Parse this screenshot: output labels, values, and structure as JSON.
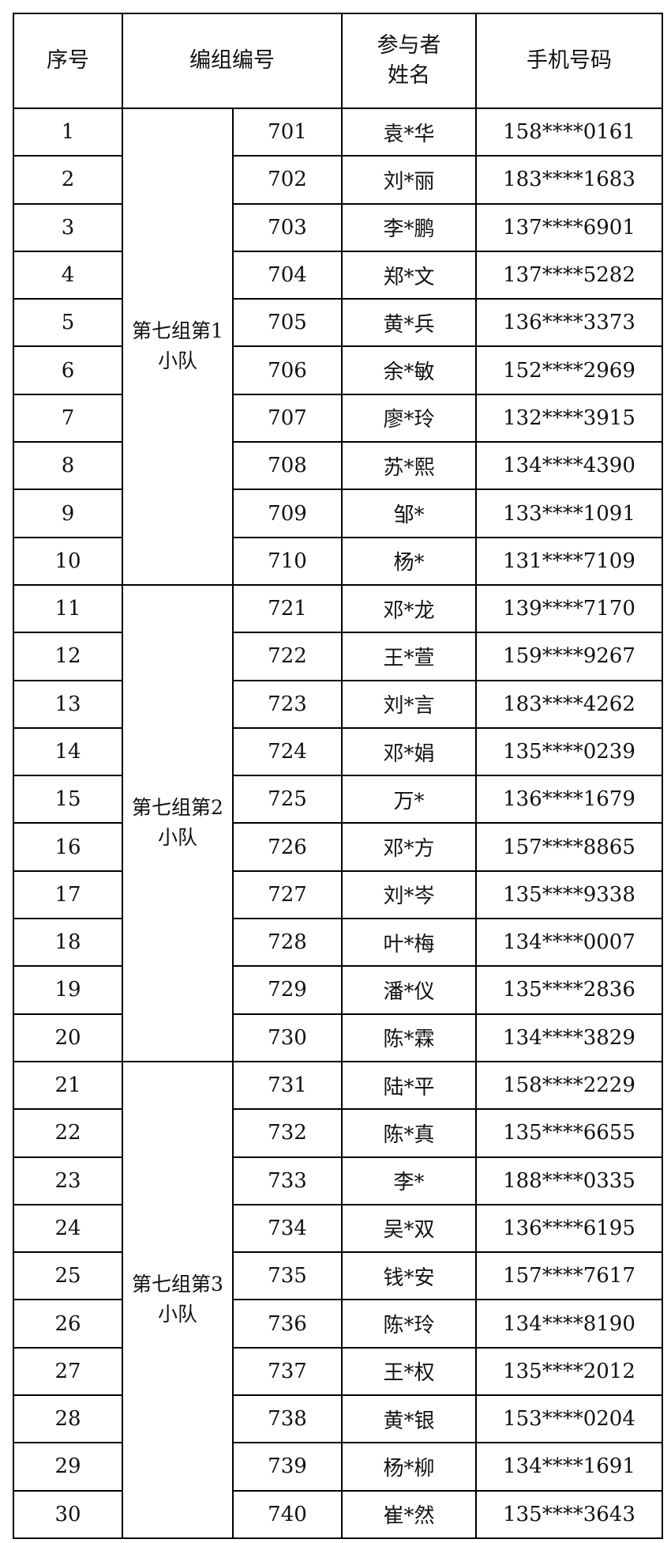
{
  "headers": {
    "index": "序号",
    "group_code": "编组编号",
    "name": "参与者\n姓名",
    "phone": "手机号码"
  },
  "teams": [
    {
      "label": "第七组第1小队",
      "rows": [
        {
          "index": "1",
          "code": "701",
          "name": "袁*华",
          "phone": "158****0161"
        },
        {
          "index": "2",
          "code": "702",
          "name": "刘*丽",
          "phone": "183****1683"
        },
        {
          "index": "3",
          "code": "703",
          "name": "李*鹏",
          "phone": "137****6901"
        },
        {
          "index": "4",
          "code": "704",
          "name": "郑*文",
          "phone": "137****5282"
        },
        {
          "index": "5",
          "code": "705",
          "name": "黄*兵",
          "phone": "136****3373"
        },
        {
          "index": "6",
          "code": "706",
          "name": "余*敏",
          "phone": "152****2969"
        },
        {
          "index": "7",
          "code": "707",
          "name": "廖*玲",
          "phone": "132****3915"
        },
        {
          "index": "8",
          "code": "708",
          "name": "苏*熙",
          "phone": "134****4390"
        },
        {
          "index": "9",
          "code": "709",
          "name": "邹*",
          "phone": "133****1091"
        },
        {
          "index": "10",
          "code": "710",
          "name": "杨*",
          "phone": "131****7109"
        }
      ]
    },
    {
      "label": "第七组第2小队",
      "rows": [
        {
          "index": "11",
          "code": "721",
          "name": "邓*龙",
          "phone": "139****7170"
        },
        {
          "index": "12",
          "code": "722",
          "name": "王*萱",
          "phone": "159****9267"
        },
        {
          "index": "13",
          "code": "723",
          "name": "刘*言",
          "phone": "183****4262"
        },
        {
          "index": "14",
          "code": "724",
          "name": "邓*娟",
          "phone": "135****0239"
        },
        {
          "index": "15",
          "code": "725",
          "name": "万*",
          "phone": "136****1679"
        },
        {
          "index": "16",
          "code": "726",
          "name": "邓*方",
          "phone": "157****8865"
        },
        {
          "index": "17",
          "code": "727",
          "name": "刘*岑",
          "phone": "135****9338"
        },
        {
          "index": "18",
          "code": "728",
          "name": "叶*梅",
          "phone": "134****0007"
        },
        {
          "index": "19",
          "code": "729",
          "name": "潘*仪",
          "phone": "135****2836"
        },
        {
          "index": "20",
          "code": "730",
          "name": "陈*霖",
          "phone": "134****3829"
        }
      ]
    },
    {
      "label": "第七组第3小队",
      "rows": [
        {
          "index": "21",
          "code": "731",
          "name": "陆*平",
          "phone": "158****2229"
        },
        {
          "index": "22",
          "code": "732",
          "name": "陈*真",
          "phone": "135****6655"
        },
        {
          "index": "23",
          "code": "733",
          "name": "李*",
          "phone": "188****0335"
        },
        {
          "index": "24",
          "code": "734",
          "name": "吴*双",
          "phone": "136****6195"
        },
        {
          "index": "25",
          "code": "735",
          "name": "钱*安",
          "phone": "157****7617"
        },
        {
          "index": "26",
          "code": "736",
          "name": "陈*玲",
          "phone": "134****8190"
        },
        {
          "index": "27",
          "code": "737",
          "name": "王*权",
          "phone": "135****2012"
        },
        {
          "index": "28",
          "code": "738",
          "name": "黄*银",
          "phone": "153****0204"
        },
        {
          "index": "29",
          "code": "739",
          "name": "杨*柳",
          "phone": "134****1691"
        },
        {
          "index": "30",
          "code": "740",
          "name": "崔*然",
          "phone": "135****3643"
        }
      ]
    }
  ]
}
